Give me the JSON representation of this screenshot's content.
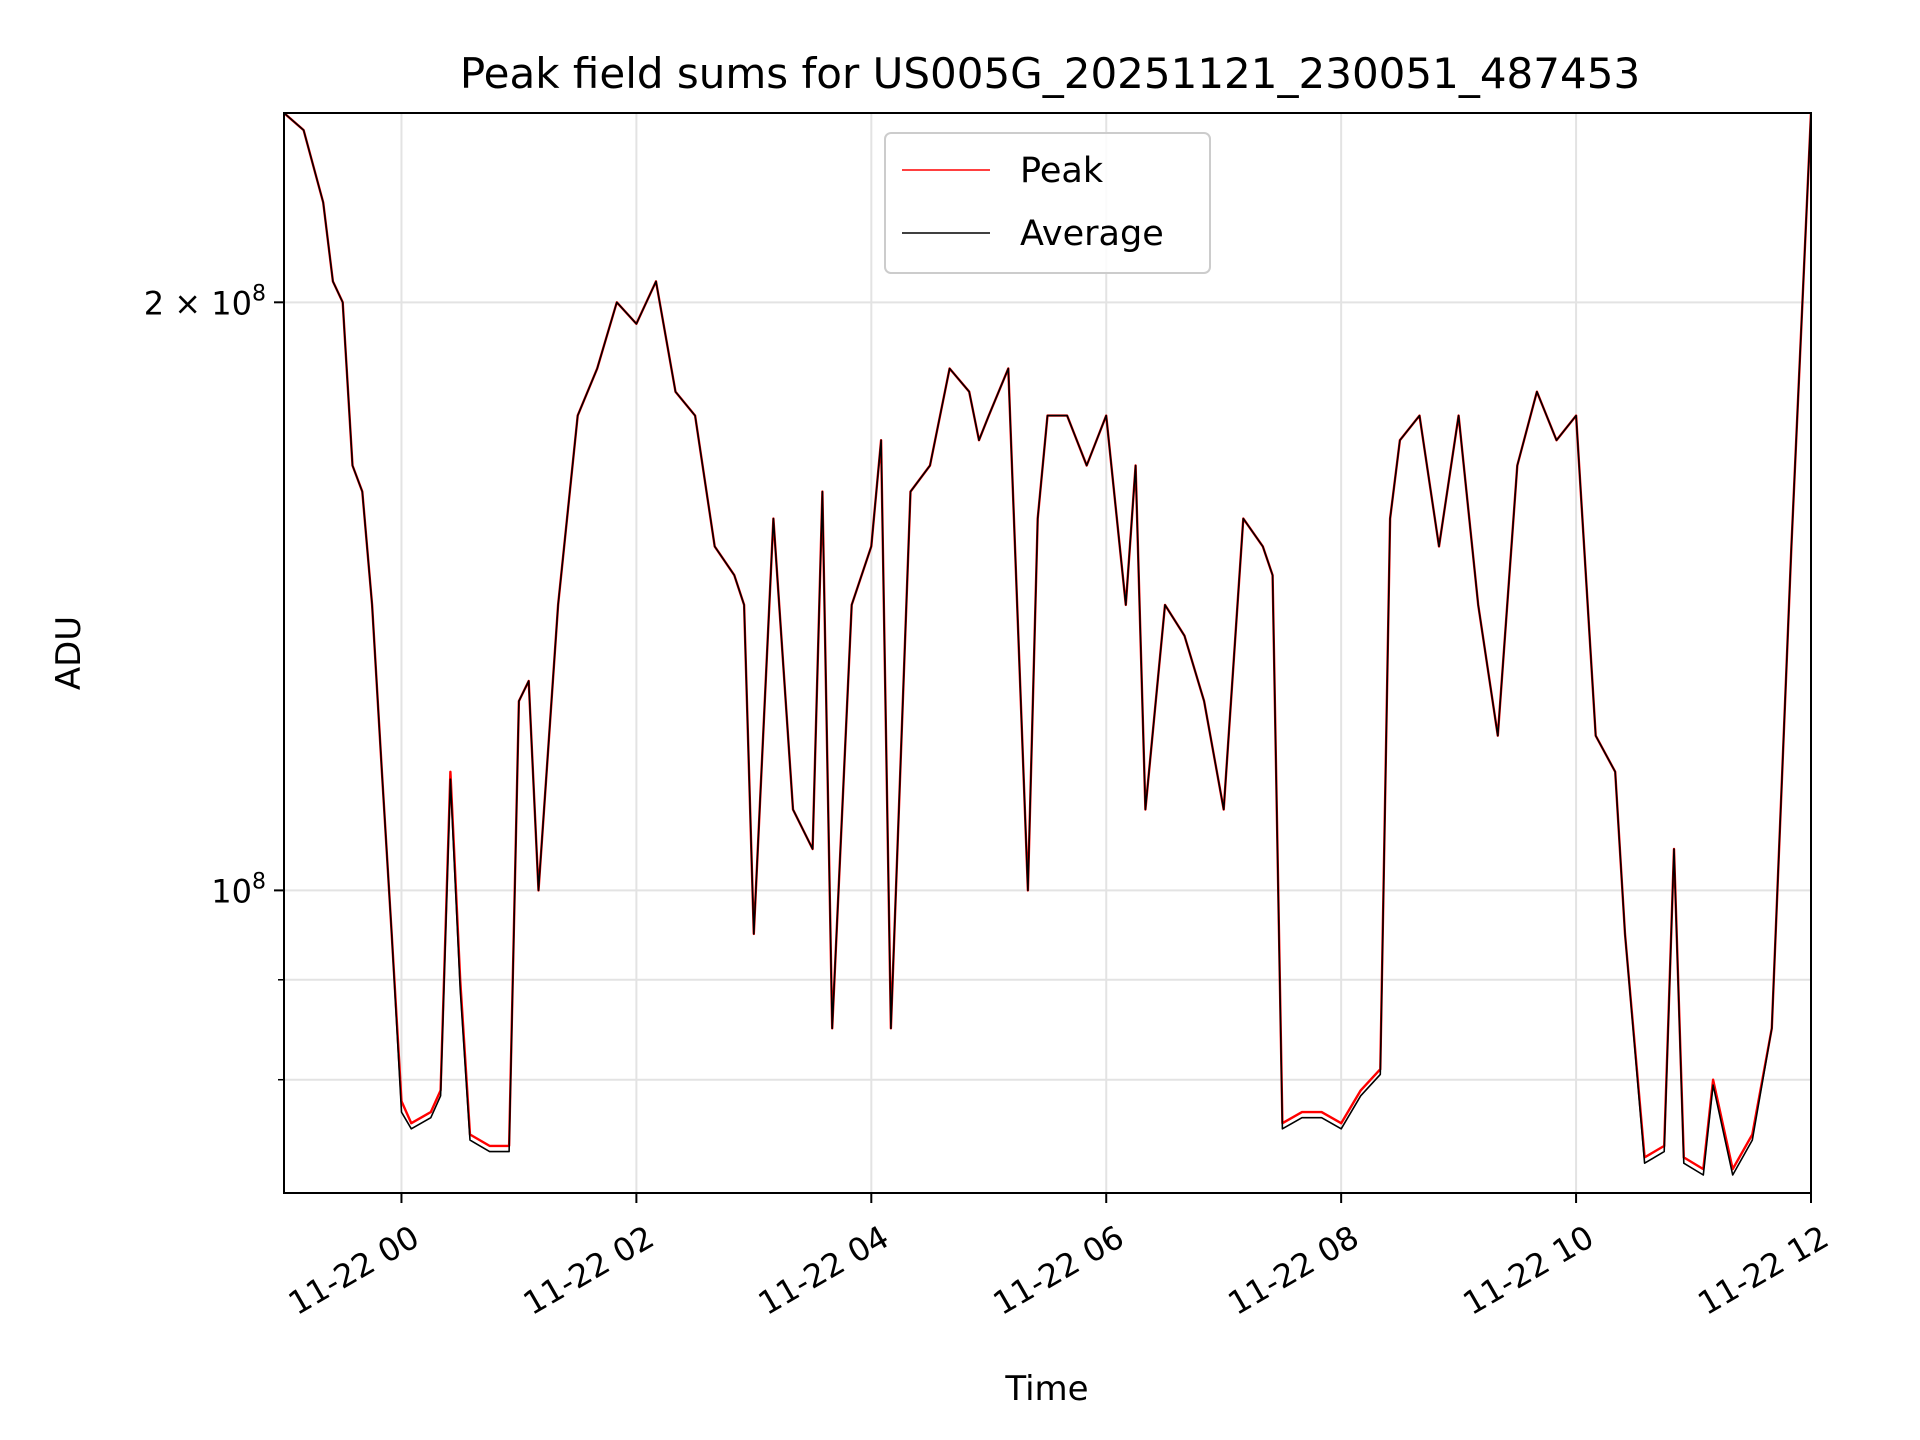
{
  "chart_data": {
    "type": "line",
    "title": "Peak field sums for US005G_20251121_230051_487453",
    "xlabel": "Time",
    "ylabel": "ADU",
    "yscale": "log",
    "xlim": [
      "2025-11-21 23:00",
      "2025-11-22 12:00"
    ],
    "ylim": [
      70000000,
      250000000
    ],
    "x_ticks": [
      {
        "at": "2025-11-22 00:00",
        "label": "11-22 00"
      },
      {
        "at": "2025-11-22 02:00",
        "label": "11-22 02"
      },
      {
        "at": "2025-11-22 04:00",
        "label": "11-22 04"
      },
      {
        "at": "2025-11-22 06:00",
        "label": "11-22 06"
      },
      {
        "at": "2025-11-22 08:00",
        "label": "11-22 08"
      },
      {
        "at": "2025-11-22 10:00",
        "label": "11-22 10"
      },
      {
        "at": "2025-11-22 12:00",
        "label": "11-22 12"
      }
    ],
    "y_ticks": [
      {
        "value": 100000000,
        "base": "10",
        "exp": "8",
        "label": "10^8"
      },
      {
        "value": 200000000,
        "mantissa": "2",
        "base": "10",
        "exp": "8",
        "label": "2 × 10^8"
      }
    ],
    "y_minor_ticks": [
      80000000,
      90000000
    ],
    "grid": true,
    "legend": "top-center",
    "series": [
      {
        "name": "Peak",
        "color": "#ff0000",
        "x": [
          "2025-11-21 23:00",
          "2025-11-21 23:10",
          "2025-11-21 23:20",
          "2025-11-21 23:25",
          "2025-11-21 23:30",
          "2025-11-21 23:35",
          "2025-11-21 23:40",
          "2025-11-21 23:45",
          "2025-11-21 23:50",
          "2025-11-21 23:55",
          "2025-11-22 00:00",
          "2025-11-22 00:05",
          "2025-11-22 00:15",
          "2025-11-22 00:20",
          "2025-11-22 00:25",
          "2025-11-22 00:30",
          "2025-11-22 00:35",
          "2025-11-22 00:45",
          "2025-11-22 00:55",
          "2025-11-22 01:00",
          "2025-11-22 01:05",
          "2025-11-22 01:10",
          "2025-11-22 01:20",
          "2025-11-22 01:30",
          "2025-11-22 01:40",
          "2025-11-22 01:50",
          "2025-11-22 02:00",
          "2025-11-22 02:10",
          "2025-11-22 02:20",
          "2025-11-22 02:30",
          "2025-11-22 02:40",
          "2025-11-22 02:50",
          "2025-11-22 02:55",
          "2025-11-22 03:00",
          "2025-11-22 03:10",
          "2025-11-22 03:20",
          "2025-11-22 03:30",
          "2025-11-22 03:35",
          "2025-11-22 03:40",
          "2025-11-22 03:50",
          "2025-11-22 04:00",
          "2025-11-22 04:05",
          "2025-11-22 04:10",
          "2025-11-22 04:20",
          "2025-11-22 04:30",
          "2025-11-22 04:40",
          "2025-11-22 04:50",
          "2025-11-22 04:55",
          "2025-11-22 05:00",
          "2025-11-22 05:10",
          "2025-11-22 05:20",
          "2025-11-22 05:25",
          "2025-11-22 05:30",
          "2025-11-22 05:40",
          "2025-11-22 05:50",
          "2025-11-22 06:00",
          "2025-11-22 06:10",
          "2025-11-22 06:15",
          "2025-11-22 06:20",
          "2025-11-22 06:30",
          "2025-11-22 06:40",
          "2025-11-22 06:50",
          "2025-11-22 07:00",
          "2025-11-22 07:10",
          "2025-11-22 07:20",
          "2025-11-22 07:25",
          "2025-11-22 07:30",
          "2025-11-22 07:40",
          "2025-11-22 07:50",
          "2025-11-22 08:00",
          "2025-11-22 08:10",
          "2025-11-22 08:20",
          "2025-11-22 08:25",
          "2025-11-22 08:30",
          "2025-11-22 08:40",
          "2025-11-22 08:50",
          "2025-11-22 09:00",
          "2025-11-22 09:10",
          "2025-11-22 09:20",
          "2025-11-22 09:30",
          "2025-11-22 09:40",
          "2025-11-22 09:50",
          "2025-11-22 10:00",
          "2025-11-22 10:10",
          "2025-11-22 10:20",
          "2025-11-22 10:25",
          "2025-11-22 10:35",
          "2025-11-22 10:45",
          "2025-11-22 10:50",
          "2025-11-22 10:55",
          "2025-11-22 11:05",
          "2025-11-22 11:10",
          "2025-11-22 11:20",
          "2025-11-22 11:30",
          "2025-11-22 11:40",
          "2025-11-22 11:50",
          "2025-11-22 12:00"
        ],
        "y": [
          250000000,
          245000000,
          225000000,
          205000000,
          200000000,
          165000000,
          160000000,
          140000000,
          115000000,
          95000000,
          78000000,
          76000000,
          77000000,
          79000000,
          115000000,
          90000000,
          75000000,
          74000000,
          74000000,
          125000000,
          128000000,
          100000000,
          140000000,
          175000000,
          185000000,
          200000000,
          195000000,
          205000000,
          180000000,
          175000000,
          150000000,
          145000000,
          140000000,
          95000000,
          155000000,
          110000000,
          105000000,
          160000000,
          85000000,
          140000000,
          150000000,
          170000000,
          85000000,
          160000000,
          165000000,
          185000000,
          180000000,
          170000000,
          175000000,
          185000000,
          100000000,
          155000000,
          175000000,
          175000000,
          165000000,
          175000000,
          140000000,
          165000000,
          110000000,
          140000000,
          135000000,
          125000000,
          110000000,
          155000000,
          150000000,
          145000000,
          76000000,
          77000000,
          77000000,
          76000000,
          79000000,
          81000000,
          155000000,
          170000000,
          175000000,
          150000000,
          175000000,
          140000000,
          120000000,
          165000000,
          180000000,
          170000000,
          175000000,
          120000000,
          115000000,
          95000000,
          73000000,
          74000000,
          105000000,
          73000000,
          72000000,
          80000000,
          72000000,
          75000000,
          85000000,
          150000000,
          250000000
        ]
      },
      {
        "name": "Average",
        "color": "#000000",
        "x": [
          "2025-11-21 23:00",
          "2025-11-21 23:10",
          "2025-11-21 23:20",
          "2025-11-21 23:25",
          "2025-11-21 23:30",
          "2025-11-21 23:35",
          "2025-11-21 23:40",
          "2025-11-21 23:45",
          "2025-11-21 23:50",
          "2025-11-21 23:55",
          "2025-11-22 00:00",
          "2025-11-22 00:05",
          "2025-11-22 00:15",
          "2025-11-22 00:20",
          "2025-11-22 00:25",
          "2025-11-22 00:30",
          "2025-11-22 00:35",
          "2025-11-22 00:45",
          "2025-11-22 00:55",
          "2025-11-22 01:00",
          "2025-11-22 01:05",
          "2025-11-22 01:10",
          "2025-11-22 01:20",
          "2025-11-22 01:30",
          "2025-11-22 01:40",
          "2025-11-22 01:50",
          "2025-11-22 02:00",
          "2025-11-22 02:10",
          "2025-11-22 02:20",
          "2025-11-22 02:30",
          "2025-11-22 02:40",
          "2025-11-22 02:50",
          "2025-11-22 02:55",
          "2025-11-22 03:00",
          "2025-11-22 03:10",
          "2025-11-22 03:20",
          "2025-11-22 03:30",
          "2025-11-22 03:35",
          "2025-11-22 03:40",
          "2025-11-22 03:50",
          "2025-11-22 04:00",
          "2025-11-22 04:05",
          "2025-11-22 04:10",
          "2025-11-22 04:20",
          "2025-11-22 04:30",
          "2025-11-22 04:40",
          "2025-11-22 04:50",
          "2025-11-22 04:55",
          "2025-11-22 05:00",
          "2025-11-22 05:10",
          "2025-11-22 05:20",
          "2025-11-22 05:25",
          "2025-11-22 05:30",
          "2025-11-22 05:40",
          "2025-11-22 05:50",
          "2025-11-22 06:00",
          "2025-11-22 06:10",
          "2025-11-22 06:15",
          "2025-11-22 06:20",
          "2025-11-22 06:30",
          "2025-11-22 06:40",
          "2025-11-22 06:50",
          "2025-11-22 07:00",
          "2025-11-22 07:10",
          "2025-11-22 07:20",
          "2025-11-22 07:25",
          "2025-11-22 07:30",
          "2025-11-22 07:40",
          "2025-11-22 07:50",
          "2025-11-22 08:00",
          "2025-11-22 08:10",
          "2025-11-22 08:20",
          "2025-11-22 08:25",
          "2025-11-22 08:30",
          "2025-11-22 08:40",
          "2025-11-22 08:50",
          "2025-11-22 09:00",
          "2025-11-22 09:10",
          "2025-11-22 09:20",
          "2025-11-22 09:30",
          "2025-11-22 09:40",
          "2025-11-22 09:50",
          "2025-11-22 10:00",
          "2025-11-22 10:10",
          "2025-11-22 10:20",
          "2025-11-22 10:25",
          "2025-11-22 10:35",
          "2025-11-22 10:45",
          "2025-11-22 10:50",
          "2025-11-22 10:55",
          "2025-11-22 11:05",
          "2025-11-22 11:10",
          "2025-11-22 11:20",
          "2025-11-22 11:30",
          "2025-11-22 11:40",
          "2025-11-22 11:50",
          "2025-11-22 12:00"
        ],
        "y": [
          250000000,
          245000000,
          225000000,
          205000000,
          200000000,
          165000000,
          160000000,
          140000000,
          115000000,
          95000000,
          77000000,
          75500000,
          76500000,
          78500000,
          114000000,
          89000000,
          74500000,
          73500000,
          73500000,
          125000000,
          128000000,
          100000000,
          140000000,
          175000000,
          185000000,
          200000000,
          195000000,
          205000000,
          180000000,
          175000000,
          150000000,
          145000000,
          140000000,
          95000000,
          155000000,
          110000000,
          105000000,
          160000000,
          85000000,
          140000000,
          150000000,
          170000000,
          85000000,
          160000000,
          165000000,
          185000000,
          180000000,
          170000000,
          175000000,
          185000000,
          100000000,
          155000000,
          175000000,
          175000000,
          165000000,
          175000000,
          140000000,
          165000000,
          110000000,
          140000000,
          135000000,
          125000000,
          110000000,
          155000000,
          150000000,
          145000000,
          75500000,
          76500000,
          76500000,
          75500000,
          78500000,
          80500000,
          155000000,
          170000000,
          175000000,
          150000000,
          175000000,
          140000000,
          120000000,
          165000000,
          180000000,
          170000000,
          175000000,
          120000000,
          115000000,
          95000000,
          72500000,
          73500000,
          105000000,
          72500000,
          71500000,
          79500000,
          71500000,
          74500000,
          85000000,
          150000000,
          250000000
        ]
      }
    ]
  }
}
